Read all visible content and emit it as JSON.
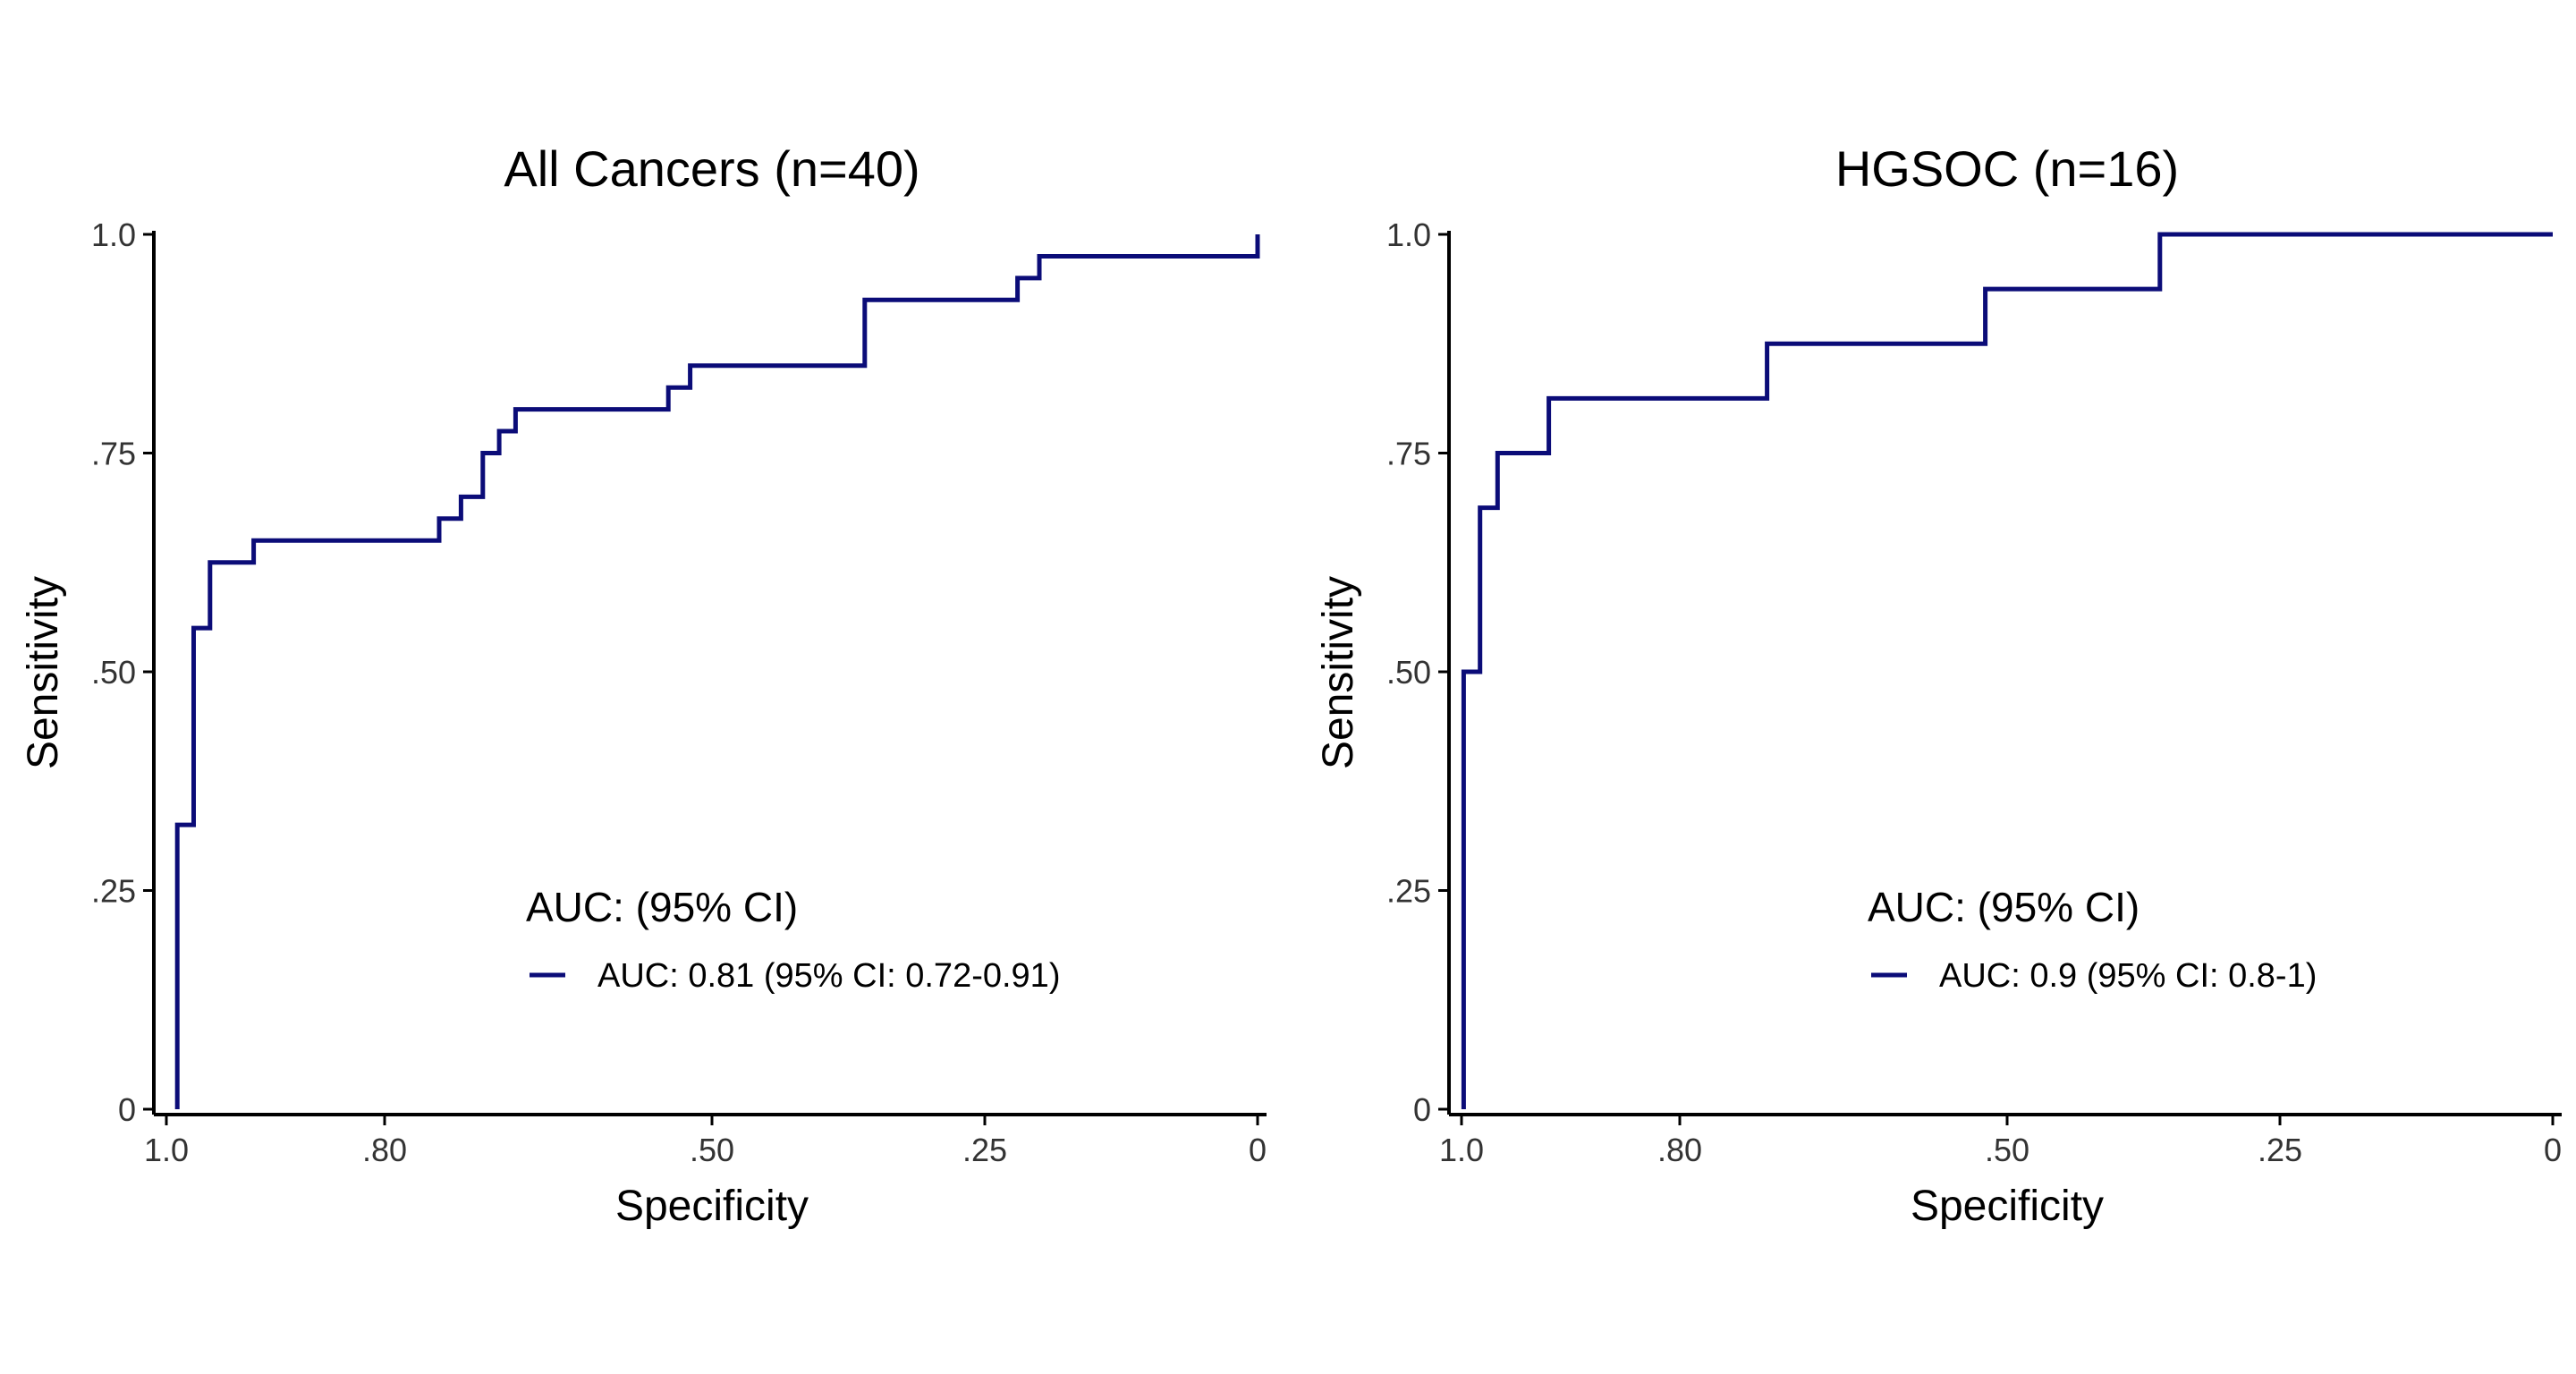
{
  "colors": {
    "curve": "#0b0c78",
    "axis": "#000000",
    "text": "#000000",
    "tick_text": "#333333",
    "background": "#ffffff"
  },
  "chart_data": [
    {
      "type": "line",
      "subtype": "roc-step",
      "title": "All Cancers (n=40)",
      "xlabel": "Specificity",
      "ylabel": "Sensitivity",
      "xlim": [
        1.0,
        0.0
      ],
      "ylim": [
        0.0,
        1.0
      ],
      "x_reversed": true,
      "x_ticks": [
        1.0,
        0.8,
        0.5,
        0.25,
        0.0
      ],
      "x_tick_labels": [
        "1.0",
        ".80",
        ".50",
        ".25",
        "0"
      ],
      "y_ticks": [
        0.0,
        0.25,
        0.5,
        0.75,
        1.0
      ],
      "y_tick_labels": [
        "0",
        ".25",
        ".50",
        ".75",
        "1.0"
      ],
      "grid": false,
      "legend": {
        "title": "AUC: (95% CI)",
        "position": "bottom-right",
        "entries": [
          "AUC: 0.81 (95% CI: 0.72-0.91)"
        ]
      },
      "series": [
        {
          "name": "AUC: 0.81 (95% CI: 0.72-0.91)",
          "x": [
            0.99,
            0.99,
            0.975,
            0.975,
            0.96,
            0.96,
            0.92,
            0.92,
            0.75,
            0.75,
            0.73,
            0.73,
            0.71,
            0.71,
            0.695,
            0.695,
            0.68,
            0.68,
            0.54,
            0.54,
            0.52,
            0.52,
            0.36,
            0.36,
            0.22,
            0.22,
            0.2,
            0.2,
            0.0,
            0.0
          ],
          "y": [
            0.0,
            0.325,
            0.325,
            0.55,
            0.55,
            0.625,
            0.625,
            0.65,
            0.65,
            0.675,
            0.675,
            0.7,
            0.7,
            0.75,
            0.75,
            0.775,
            0.775,
            0.8,
            0.8,
            0.825,
            0.825,
            0.85,
            0.85,
            0.925,
            0.925,
            0.95,
            0.95,
            0.975,
            0.975,
            1.0
          ]
        }
      ]
    },
    {
      "type": "line",
      "subtype": "roc-step",
      "title": "HGSOC (n=16)",
      "xlabel": "Specificity",
      "ylabel": "Sensitivity",
      "xlim": [
        1.0,
        0.0
      ],
      "ylim": [
        0.0,
        1.0
      ],
      "x_reversed": true,
      "x_ticks": [
        1.0,
        0.8,
        0.5,
        0.25,
        0.0
      ],
      "x_tick_labels": [
        "1.0",
        ".80",
        ".50",
        ".25",
        "0"
      ],
      "y_ticks": [
        0.0,
        0.25,
        0.5,
        0.75,
        1.0
      ],
      "y_tick_labels": [
        "0",
        ".25",
        ".50",
        ".75",
        "1.0"
      ],
      "grid": false,
      "legend": {
        "title": "AUC: (95% CI)",
        "position": "bottom-right",
        "entries": [
          "AUC: 0.9 (95% CI: 0.8-1)"
        ]
      },
      "series": [
        {
          "name": "AUC: 0.9 (95% CI: 0.8-1)",
          "x": [
            0.998,
            0.998,
            0.983,
            0.983,
            0.967,
            0.967,
            0.92,
            0.92,
            0.72,
            0.72,
            0.52,
            0.52,
            0.36,
            0.36,
            0.0
          ],
          "y": [
            0.0,
            0.5,
            0.5,
            0.6875,
            0.6875,
            0.75,
            0.75,
            0.8125,
            0.8125,
            0.875,
            0.875,
            0.9375,
            0.9375,
            1.0,
            1.0
          ]
        }
      ]
    }
  ]
}
